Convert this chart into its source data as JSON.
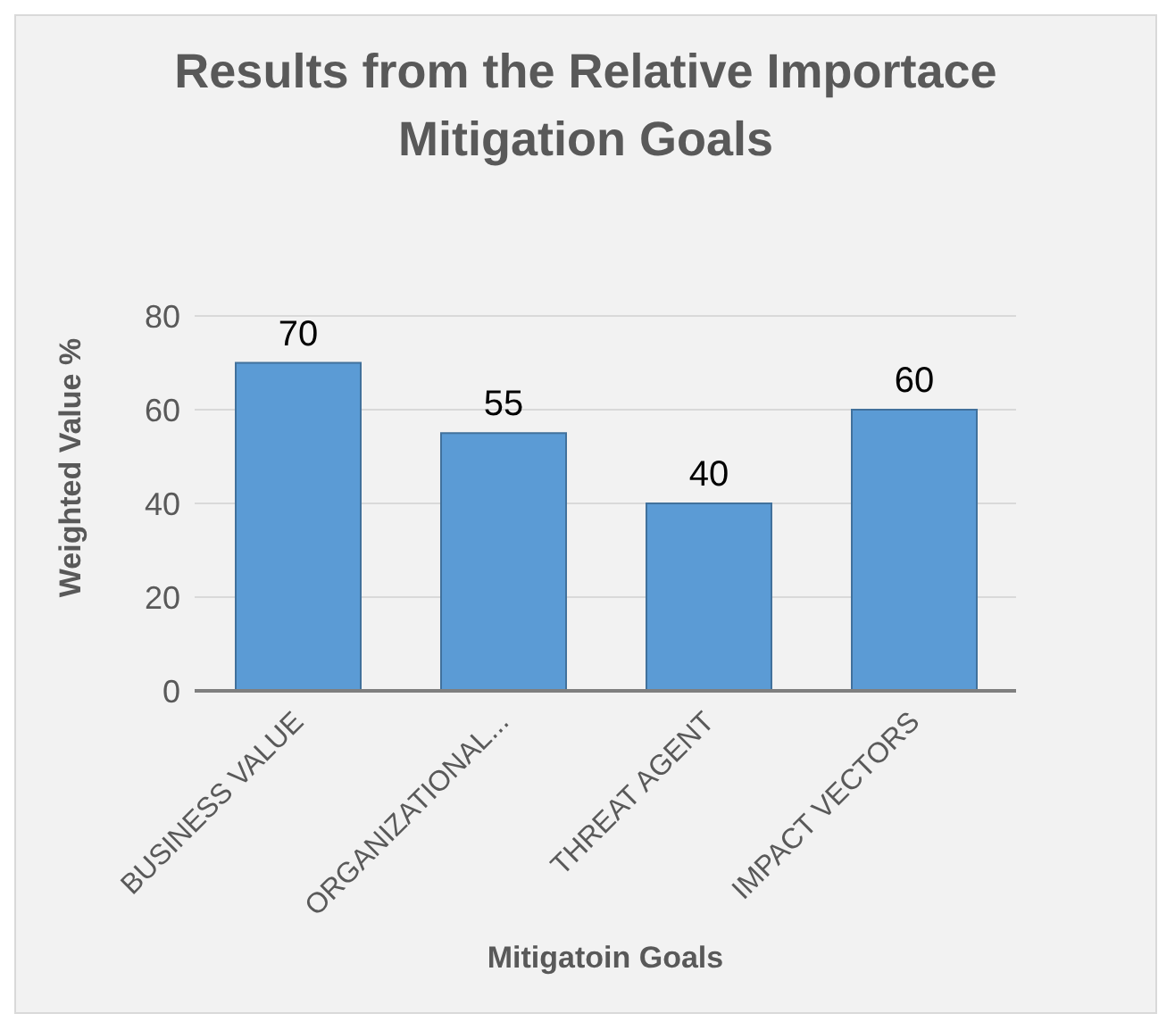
{
  "chart_data": {
    "type": "bar",
    "title": "Results from the Relative Importace Mitigation Goals",
    "xlabel": "Mitigatoin Goals",
    "ylabel": "Weighted Value %",
    "categories": [
      "BUSINESS VALUE",
      "ORGANIZATIONAL...",
      "THREAT AGENT",
      "IMPACT VECTORS"
    ],
    "values": [
      70,
      55,
      40,
      60
    ],
    "color": "#5b9bd5",
    "ylim": [
      0,
      80
    ],
    "yticks": [
      0,
      20,
      40,
      60,
      80
    ],
    "grid": "y",
    "data_labels": true
  }
}
